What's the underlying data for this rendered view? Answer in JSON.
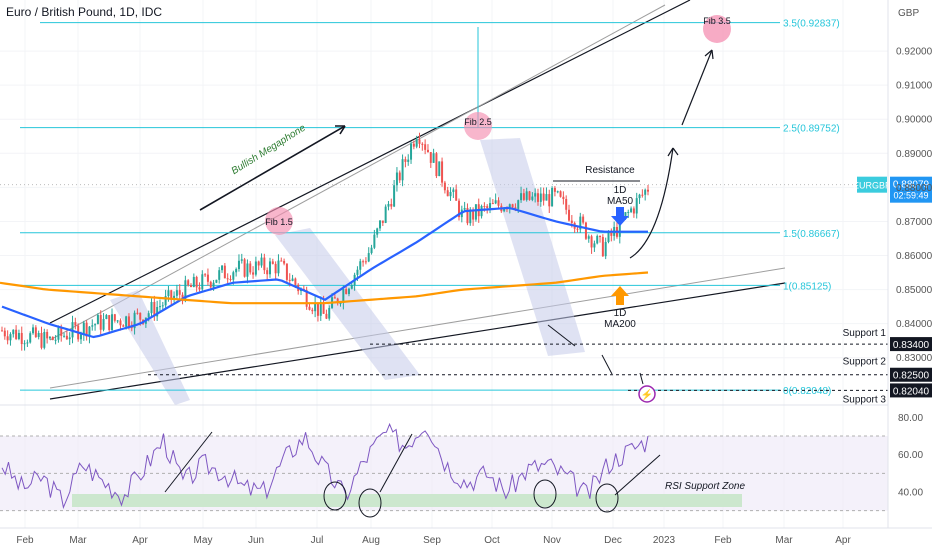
{
  "header": {
    "title": "Euro / British Pound, 1D, IDC",
    "currency": "GBP"
  },
  "price_badge": {
    "symbol": "EURGBP",
    "price": "0.88079",
    "countdown": "02:59:49",
    "color": "#2196f3"
  },
  "fib_levels": [
    {
      "label": "3.5(0.92837)",
      "value": 0.92837
    },
    {
      "label": "2.5(0.89752)",
      "value": 0.89752
    },
    {
      "label": "1.5(0.86667)",
      "value": 0.86667
    },
    {
      "label": "1(0.85125)",
      "value": 0.85125
    },
    {
      "label": "0(0.82048)",
      "value": 0.82048
    }
  ],
  "supports": [
    {
      "name": "Support 1",
      "value": "0.83400"
    },
    {
      "name": "Support 2",
      "value": "0.82500"
    },
    {
      "name": "Support 3",
      "value": "0.82040"
    }
  ],
  "annotations": {
    "fib_markers": [
      "Fib 1.5",
      "Fib 2.5",
      "Fib 3.5"
    ],
    "pattern": "Bullish Megaphone",
    "resistance": "Resistance",
    "ma50_label": [
      "1D",
      "MA50"
    ],
    "ma200_label": [
      "1D",
      "MA200"
    ],
    "rsi_zone": "RSI Support Zone"
  },
  "colors": {
    "fib": "#26c6da",
    "ma50": "#2962ff",
    "ma200": "#ff9800",
    "bull": "#26a69a",
    "bear": "#ef5350",
    "rsi": "#7e57c2",
    "marker": "#f48fb1",
    "zone": "#c8e6c9"
  },
  "chart_data": [
    {
      "type": "line",
      "title": "Euro / British Pound, 1D, IDC",
      "y_axis": {
        "ticks": [
          "0.92000",
          "0.91000",
          "0.90000",
          "0.89000",
          "0.88000",
          "0.87000",
          "0.86000",
          "0.85000",
          "0.84000",
          "0.83000"
        ],
        "ylim": [
          0.817,
          0.935
        ],
        "position": "right"
      },
      "x_axis": {
        "ticks": [
          "Feb",
          "Mar",
          "Apr",
          "May",
          "Jun",
          "Jul",
          "Aug",
          "Sep",
          "Oct",
          "Nov",
          "Dec",
          "2023",
          "Feb",
          "Mar",
          "Apr"
        ]
      },
      "series": [
        {
          "name": "EURGBP",
          "x": [
            "Jan",
            "Feb",
            "Mar",
            "Apr",
            "May",
            "Jun",
            "Jul",
            "Aug",
            "Sep",
            "Sep-end",
            "Oct",
            "Nov",
            "Nov-mid",
            "Dec",
            "Dec-mid"
          ],
          "values": [
            0.838,
            0.835,
            0.84,
            0.842,
            0.85,
            0.856,
            0.857,
            0.842,
            0.862,
            0.897,
            0.871,
            0.876,
            0.877,
            0.862,
            0.88
          ]
        },
        {
          "name": "MA50",
          "values": [
            0.845,
            0.84,
            0.836,
            0.84,
            0.848,
            0.852,
            0.853,
            0.847,
            0.856,
            0.864,
            0.873,
            0.874,
            0.87,
            0.867,
            0.867
          ]
        },
        {
          "name": "MA200",
          "values": [
            0.852,
            0.85,
            0.849,
            0.848,
            0.847,
            0.846,
            0.846,
            0.846,
            0.847,
            0.848,
            0.85,
            0.851,
            0.852,
            0.854,
            0.855
          ]
        }
      ]
    },
    {
      "type": "line",
      "title": "",
      "y_axis": {
        "ticks": [
          "80.00",
          "60.00",
          "40.00"
        ],
        "ylim": [
          25,
          85
        ]
      },
      "series": [
        {
          "name": "",
          "values": [
            55,
            42,
            48,
            35,
            55,
            46,
            38,
            52,
            68,
            45,
            55,
            50,
            42,
            40,
            58,
            70,
            52,
            38,
            58,
            72,
            65,
            78,
            55,
            45,
            50,
            40,
            52,
            55,
            48,
            38,
            55,
            62,
            68
          ]
        }
      ]
    }
  ]
}
